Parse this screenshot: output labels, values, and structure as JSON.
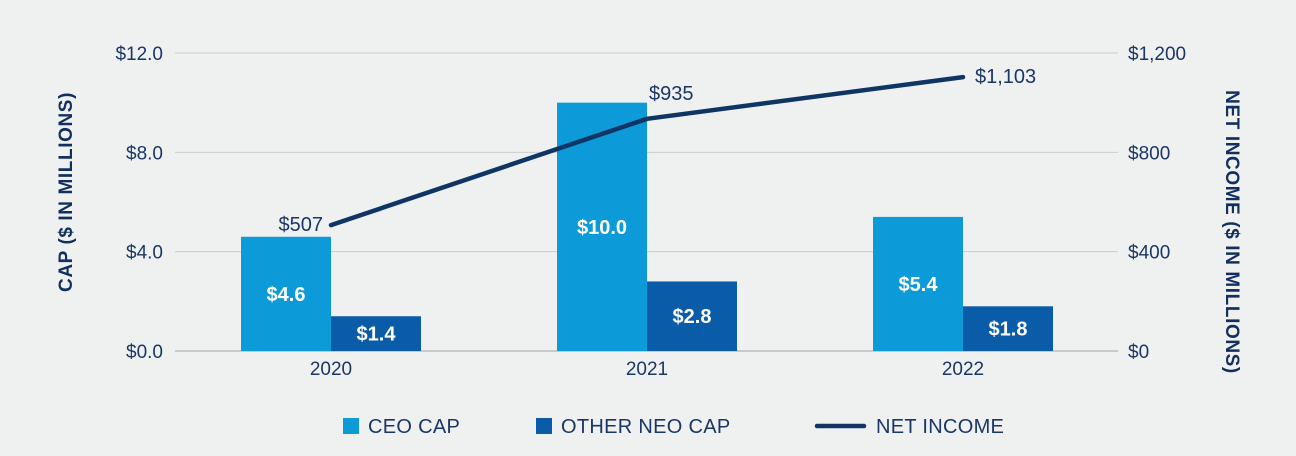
{
  "chart_data": {
    "type": "bar",
    "categories": [
      "2020",
      "2021",
      "2022"
    ],
    "series": [
      {
        "name": "CEO CAP",
        "kind": "bar",
        "axis": "left",
        "color": "#0d9ad8",
        "values": [
          4.6,
          10.0,
          5.4
        ],
        "labels": [
          "$4.6",
          "$10.0",
          "$5.4"
        ]
      },
      {
        "name": "OTHER NEO CAP",
        "kind": "bar",
        "axis": "left",
        "color": "#0a5ca8",
        "values": [
          1.4,
          2.8,
          1.8
        ],
        "labels": [
          "$1.4",
          "$2.8",
          "$1.8"
        ]
      },
      {
        "name": "NET INCOME",
        "kind": "line",
        "axis": "right",
        "color": "#0f3564",
        "values": [
          507,
          935,
          1103
        ],
        "labels": [
          "$507",
          "$935",
          "$1,103"
        ]
      }
    ],
    "ylabel": "CAP ($ IN MILLIONS)",
    "y2label": "NET INCOME  ($ IN MILLIONS)",
    "ylim": [
      0,
      12
    ],
    "y2lim": [
      0,
      1200
    ],
    "yticks": [
      {
        "value": 0,
        "label": "$0.0"
      },
      {
        "value": 4,
        "label": "$4.0"
      },
      {
        "value": 8,
        "label": "$8.0"
      },
      {
        "value": 12,
        "label": "$12.0"
      }
    ],
    "y2ticks": [
      {
        "value": 0,
        "label": "$0"
      },
      {
        "value": 400,
        "label": "$400"
      },
      {
        "value": 800,
        "label": "$800"
      },
      {
        "value": 1200,
        "label": "$1,200"
      }
    ],
    "grid": true,
    "legend": "bottom"
  }
}
